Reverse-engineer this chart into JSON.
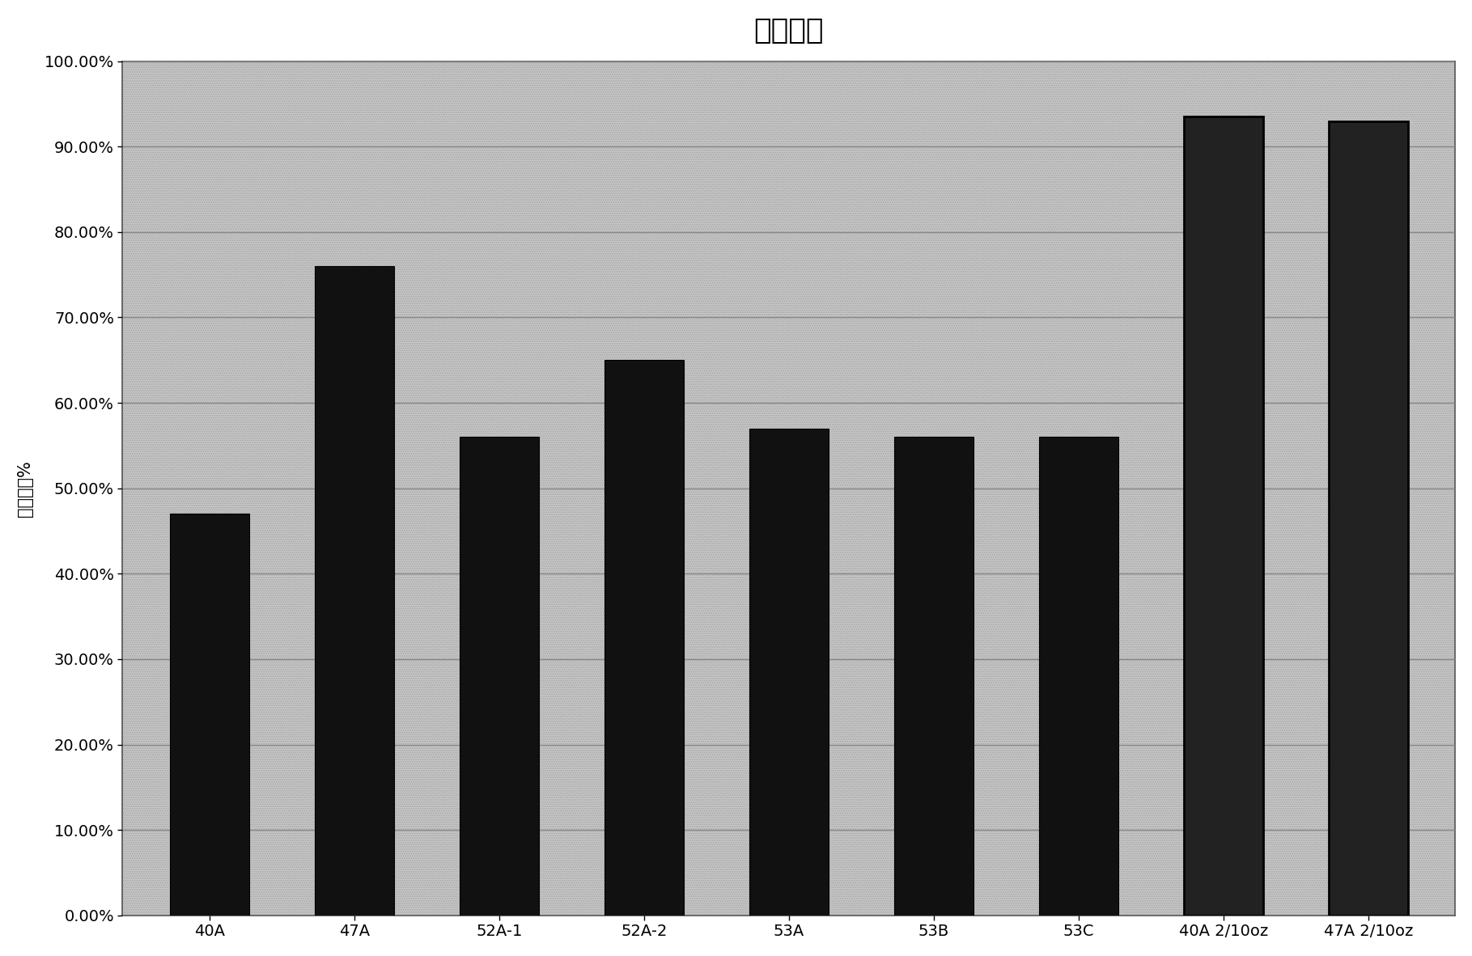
{
  "title": "蟯合实验",
  "ylabel": "蟯合的馒%",
  "categories": [
    "40A",
    "47A",
    "52A-1",
    "52A-2",
    "53A",
    "53B",
    "53C",
    "40A 2/10oz",
    "47A 2/10oz"
  ],
  "values": [
    0.47,
    0.76,
    0.56,
    0.65,
    0.57,
    0.56,
    0.56,
    0.935,
    0.93
  ],
  "bar_color": "#111111",
  "fig_bg_color": "#ffffff",
  "plot_bg_color": "#cccccc",
  "ylim": [
    0.0,
    1.0
  ],
  "yticks": [
    0.0,
    0.1,
    0.2,
    0.3,
    0.4,
    0.5,
    0.6,
    0.7,
    0.8,
    0.9,
    1.0
  ],
  "ytick_labels": [
    "0.00%",
    "10.00%",
    "20.00%",
    "30.00%",
    "40.00%",
    "50.00%",
    "60.00%",
    "70.00%",
    "80.00%",
    "90.00%",
    "100.00%"
  ],
  "title_fontsize": 26,
  "label_fontsize": 15,
  "tick_fontsize": 14,
  "bar_width": 0.55
}
